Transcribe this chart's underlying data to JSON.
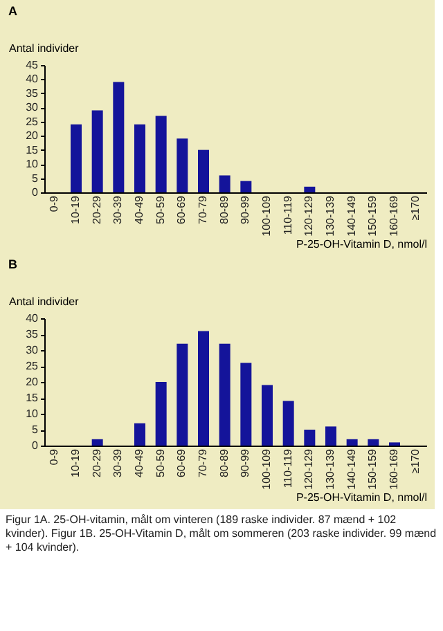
{
  "chart_data": [
    {
      "type": "bar",
      "title": "A",
      "ylabel": "Antal individer",
      "xlabel": "P-25-OH-Vitamin D, nmol/l",
      "categories": [
        "0-9",
        "10-19",
        "20-29",
        "30-39",
        "40-49",
        "50-59",
        "60-69",
        "70-79",
        "80-89",
        "90-99",
        "100-109",
        "110-119",
        "120-129",
        "130-139",
        "140-149",
        "150-159",
        "160-169",
        "≥170"
      ],
      "series": [
        {
          "color": "#14149a",
          "values": [
            0,
            24,
            29,
            39,
            24,
            27,
            19,
            15,
            6,
            4,
            0,
            0,
            2,
            0,
            0,
            0,
            0,
            0
          ]
        }
      ],
      "ylim": [
        0,
        45
      ],
      "yticks": [
        0,
        5,
        10,
        15,
        20,
        25,
        30,
        35,
        40,
        45
      ]
    },
    {
      "type": "bar",
      "title": "B",
      "ylabel": "Antal individer",
      "xlabel": "P-25-OH-Vitamin D, nmol/l",
      "categories": [
        "0-9",
        "10-19",
        "20-29",
        "30-39",
        "40-49",
        "50-59",
        "60-69",
        "70-79",
        "80-89",
        "90-99",
        "100-109",
        "110-119",
        "120-129",
        "130-139",
        "140-149",
        "150-159",
        "160-169",
        "≥170"
      ],
      "series": [
        {
          "color": "#14149a",
          "values": [
            0,
            0,
            2,
            0,
            7,
            20,
            32,
            36,
            32,
            26,
            19,
            14,
            5,
            6,
            2,
            2,
            1,
            0
          ]
        }
      ],
      "ylim": [
        0,
        40
      ],
      "yticks": [
        0,
        5,
        10,
        15,
        20,
        25,
        30,
        35,
        40
      ],
      "annotations": [
        "Figur 1A. 25-OH-vitamin, målt om vinteren (189 raske individer. 87 mænd + 102 kvinder).  Figur 1B. 25-OH-Vitamin D, målt om sommeren (203 raske individer. 99 mænd + 104 kvinder)."
      ]
    }
  ]
}
